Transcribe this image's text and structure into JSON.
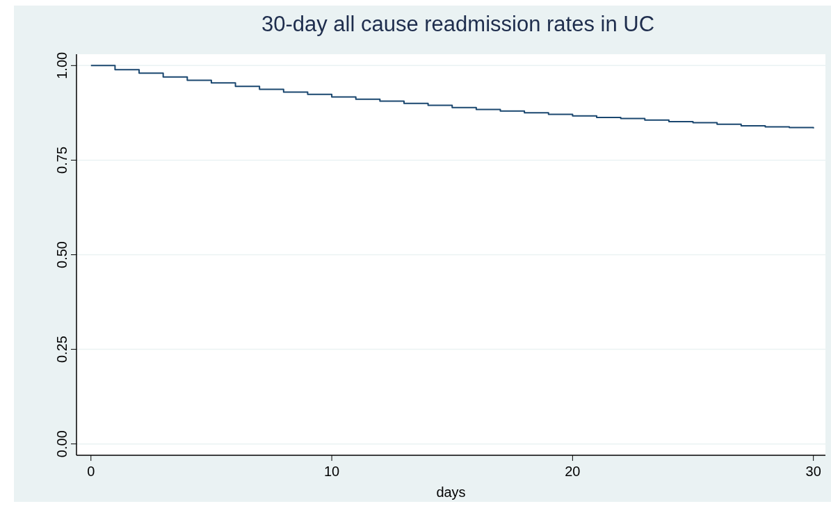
{
  "chart_data": {
    "type": "step",
    "title": "30-day all cause readmission rates in UC",
    "xlabel": "days",
    "x": [
      0,
      1,
      2,
      3,
      4,
      5,
      6,
      7,
      8,
      9,
      10,
      11,
      12,
      13,
      14,
      15,
      16,
      17,
      18,
      19,
      20,
      21,
      22,
      23,
      24,
      25,
      26,
      27,
      28,
      29,
      30
    ],
    "series": [
      {
        "color": "#1a476f",
        "values": [
          1.0,
          0.989,
          0.98,
          0.97,
          0.961,
          0.954,
          0.945,
          0.937,
          0.93,
          0.924,
          0.917,
          0.911,
          0.906,
          0.9,
          0.895,
          0.889,
          0.884,
          0.88,
          0.875,
          0.871,
          0.867,
          0.863,
          0.86,
          0.856,
          0.852,
          0.849,
          0.845,
          0.841,
          0.838,
          0.836,
          0.834
        ]
      }
    ],
    "xlim": [
      -0.6,
      30.5
    ],
    "xticks": [
      0,
      10,
      20,
      30
    ],
    "ylim": [
      -0.03,
      1.03
    ],
    "yticks": [
      {
        "value": 0,
        "label": "0.00"
      },
      {
        "value": 0.25,
        "label": "0.25"
      },
      {
        "value": 0.5,
        "label": "0.50"
      },
      {
        "value": 0.75,
        "label": "0.75"
      },
      {
        "value": 1,
        "label": "1.00"
      }
    ],
    "grid": "y"
  }
}
